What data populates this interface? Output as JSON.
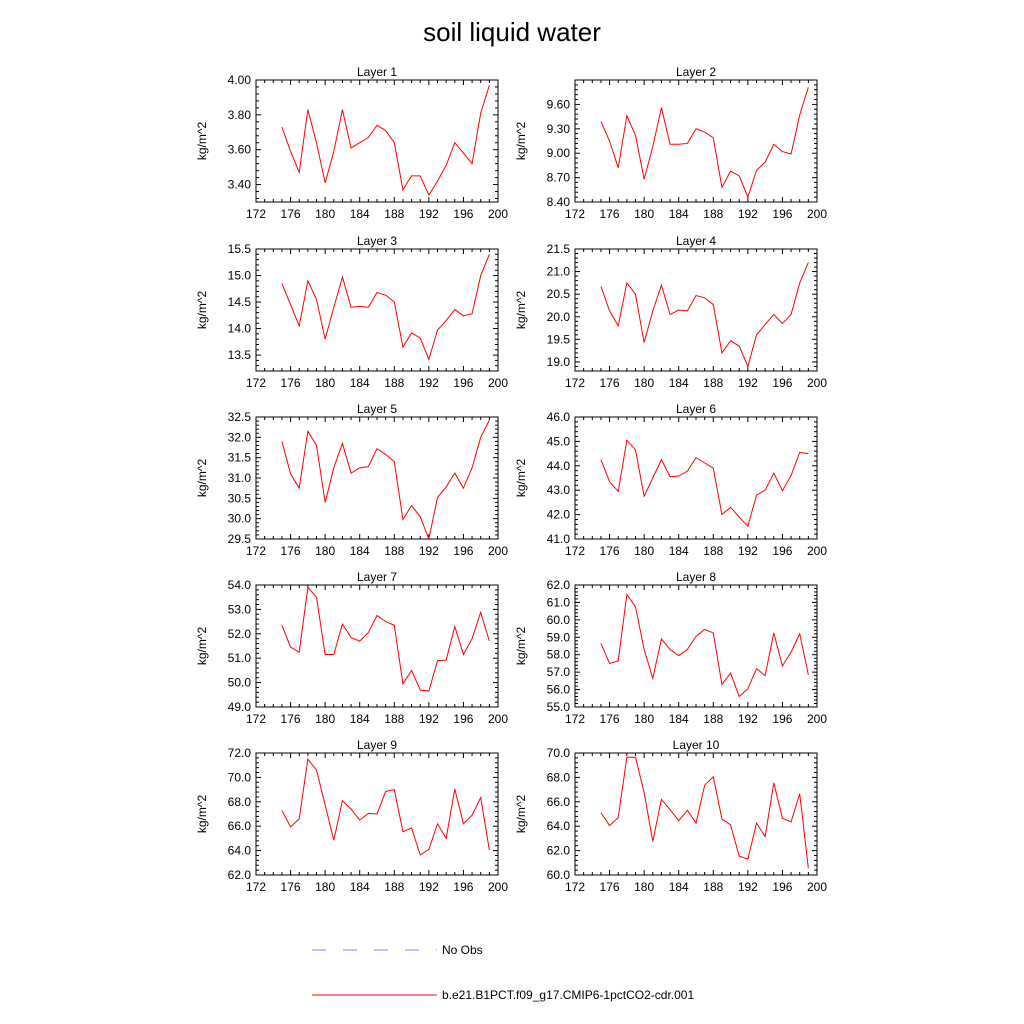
{
  "title": "soil liquid water",
  "legend": {
    "placement": "bottom",
    "entries": [
      {
        "label": "No Obs",
        "color": "#8080ff",
        "style": "dashed"
      },
      {
        "label": "b.e21.B1PCT.f09_g17.CMIP6-1pctCO2-cdr.001",
        "color": "#ff0000",
        "style": "solid"
      }
    ]
  },
  "chart_data": [
    {
      "type": "line",
      "title": "Layer 1",
      "xlabel": "",
      "ylabel": "kg/m^2",
      "xlim": [
        172,
        200
      ],
      "ylim": [
        3.3,
        4.0
      ],
      "xticks": [
        "172",
        "176",
        "180",
        "184",
        "188",
        "192",
        "196",
        "200"
      ],
      "yticks": [
        "3.40",
        "3.60",
        "3.80",
        "4.00"
      ],
      "x": [
        175,
        176,
        177,
        178,
        179,
        180,
        181,
        182,
        183,
        184,
        185,
        186,
        187,
        188,
        189,
        190,
        191,
        192,
        193,
        194,
        195,
        196,
        197,
        198,
        199
      ],
      "series": [
        {
          "name": "b.e21.B1PCT.f09_g17.CMIP6-1pctCO2-cdr.001",
          "values": [
            3.73,
            3.59,
            3.47,
            3.83,
            3.64,
            3.41,
            3.59,
            3.83,
            3.61,
            3.64,
            3.67,
            3.74,
            3.71,
            3.64,
            3.37,
            3.45,
            3.45,
            3.34,
            3.42,
            3.51,
            3.64,
            3.58,
            3.52,
            3.81,
            3.97
          ]
        }
      ]
    },
    {
      "type": "line",
      "title": "Layer 2",
      "xlabel": "",
      "ylabel": "kg/m^2",
      "xlim": [
        172,
        200
      ],
      "ylim": [
        8.4,
        9.9
      ],
      "xticks": [
        "172",
        "176",
        "180",
        "184",
        "188",
        "192",
        "196",
        "200"
      ],
      "yticks": [
        "8.40",
        "8.70",
        "9.00",
        "9.30",
        "9.60"
      ],
      "x": [
        175,
        176,
        177,
        178,
        179,
        180,
        181,
        182,
        183,
        184,
        185,
        186,
        187,
        188,
        189,
        190,
        191,
        192,
        193,
        194,
        195,
        196,
        197,
        198,
        199
      ],
      "series": [
        {
          "name": "b.e21.B1PCT.f09_g17.CMIP6-1pctCO2-cdr.001",
          "values": [
            9.39,
            9.15,
            8.82,
            9.46,
            9.22,
            8.68,
            9.08,
            9.56,
            9.11,
            9.11,
            9.12,
            9.3,
            9.26,
            9.19,
            8.58,
            8.78,
            8.72,
            8.46,
            8.79,
            8.89,
            9.11,
            9.02,
            8.99,
            9.47,
            9.81
          ]
        }
      ]
    },
    {
      "type": "line",
      "title": "Layer 3",
      "xlabel": "",
      "ylabel": "kg/m^2",
      "xlim": [
        172,
        200
      ],
      "ylim": [
        13.2,
        15.5
      ],
      "xticks": [
        "172",
        "176",
        "180",
        "184",
        "188",
        "192",
        "196",
        "200"
      ],
      "yticks": [
        "13.5",
        "14.0",
        "14.5",
        "15.0",
        "15.5"
      ],
      "x": [
        175,
        176,
        177,
        178,
        179,
        180,
        181,
        182,
        183,
        184,
        185,
        186,
        187,
        188,
        189,
        190,
        191,
        192,
        193,
        194,
        195,
        196,
        197,
        198,
        199
      ],
      "series": [
        {
          "name": "b.e21.B1PCT.f09_g17.CMIP6-1pctCO2-cdr.001",
          "values": [
            14.85,
            14.45,
            14.05,
            14.9,
            14.55,
            13.8,
            14.4,
            14.97,
            14.4,
            14.42,
            14.4,
            14.68,
            14.63,
            14.5,
            13.65,
            13.92,
            13.82,
            13.42,
            13.97,
            14.15,
            14.36,
            14.24,
            14.28,
            15.0,
            15.4
          ]
        }
      ]
    },
    {
      "type": "line",
      "title": "Layer 4",
      "xlabel": "",
      "ylabel": "kg/m^2",
      "xlim": [
        172,
        200
      ],
      "ylim": [
        18.8,
        21.5
      ],
      "xticks": [
        "172",
        "176",
        "180",
        "184",
        "188",
        "192",
        "196",
        "200"
      ],
      "yticks": [
        "19.0",
        "19.5",
        "20.0",
        "20.5",
        "21.0",
        "21.5"
      ],
      "x": [
        175,
        176,
        177,
        178,
        179,
        180,
        181,
        182,
        183,
        184,
        185,
        186,
        187,
        188,
        189,
        190,
        191,
        192,
        193,
        194,
        195,
        196,
        197,
        198,
        199
      ],
      "series": [
        {
          "name": "b.e21.B1PCT.f09_g17.CMIP6-1pctCO2-cdr.001",
          "values": [
            20.67,
            20.13,
            19.8,
            20.75,
            20.5,
            19.43,
            20.13,
            20.7,
            20.05,
            20.15,
            20.13,
            20.47,
            20.42,
            20.27,
            19.2,
            19.47,
            19.35,
            18.9,
            19.6,
            19.83,
            20.05,
            19.85,
            20.05,
            20.75,
            21.2
          ]
        }
      ]
    },
    {
      "type": "line",
      "title": "Layer 5",
      "xlabel": "",
      "ylabel": "kg/m^2",
      "xlim": [
        172,
        200
      ],
      "ylim": [
        29.5,
        32.5
      ],
      "xticks": [
        "172",
        "176",
        "180",
        "184",
        "188",
        "192",
        "196",
        "200"
      ],
      "yticks": [
        "29.5",
        "30.0",
        "30.5",
        "31.0",
        "31.5",
        "32.0",
        "32.5"
      ],
      "x": [
        175,
        176,
        177,
        178,
        179,
        180,
        181,
        182,
        183,
        184,
        185,
        186,
        187,
        188,
        189,
        190,
        191,
        192,
        193,
        194,
        195,
        196,
        197,
        198,
        199
      ],
      "series": [
        {
          "name": "b.e21.B1PCT.f09_g17.CMIP6-1pctCO2-cdr.001",
          "values": [
            31.9,
            31.1,
            30.75,
            32.15,
            31.8,
            30.4,
            31.25,
            31.85,
            31.12,
            31.25,
            31.28,
            31.72,
            31.58,
            31.4,
            29.98,
            30.32,
            30.05,
            29.5,
            30.52,
            30.78,
            31.12,
            30.75,
            31.25,
            32.0,
            32.42
          ]
        }
      ]
    },
    {
      "type": "line",
      "title": "Layer 6",
      "xlabel": "",
      "ylabel": "kg/m^2",
      "xlim": [
        172,
        200
      ],
      "ylim": [
        41.0,
        46.0
      ],
      "xticks": [
        "172",
        "176",
        "180",
        "184",
        "188",
        "192",
        "196",
        "200"
      ],
      "yticks": [
        "41.0",
        "42.0",
        "43.0",
        "44.0",
        "45.0",
        "46.0"
      ],
      "x": [
        175,
        176,
        177,
        178,
        179,
        180,
        181,
        182,
        183,
        184,
        185,
        186,
        187,
        188,
        189,
        190,
        191,
        192,
        193,
        194,
        195,
        196,
        197,
        198,
        199
      ],
      "series": [
        {
          "name": "b.e21.B1PCT.f09_g17.CMIP6-1pctCO2-cdr.001",
          "values": [
            44.25,
            43.35,
            42.95,
            45.05,
            44.65,
            42.75,
            43.5,
            44.25,
            43.55,
            43.58,
            43.78,
            44.33,
            44.12,
            43.9,
            42.0,
            42.3,
            41.9,
            41.52,
            42.8,
            43.0,
            43.7,
            42.98,
            43.6,
            44.55,
            44.5
          ]
        }
      ]
    },
    {
      "type": "line",
      "title": "Layer 7",
      "xlabel": "",
      "ylabel": "kg/m^2",
      "xlim": [
        172,
        200
      ],
      "ylim": [
        49.0,
        54.0
      ],
      "xticks": [
        "172",
        "176",
        "180",
        "184",
        "188",
        "192",
        "196",
        "200"
      ],
      "yticks": [
        "49.0",
        "50.0",
        "51.0",
        "52.0",
        "53.0",
        "54.0"
      ],
      "x": [
        175,
        176,
        177,
        178,
        179,
        180,
        181,
        182,
        183,
        184,
        185,
        186,
        187,
        188,
        189,
        190,
        191,
        192,
        193,
        194,
        195,
        196,
        197,
        198,
        199
      ],
      "series": [
        {
          "name": "b.e21.B1PCT.f09_g17.CMIP6-1pctCO2-cdr.001",
          "values": [
            52.35,
            51.45,
            51.25,
            53.9,
            53.5,
            51.15,
            51.15,
            52.4,
            51.85,
            51.7,
            52.05,
            52.75,
            52.5,
            52.35,
            49.95,
            50.5,
            49.7,
            49.65,
            50.9,
            50.92,
            52.3,
            51.15,
            51.8,
            52.88,
            51.7
          ]
        }
      ]
    },
    {
      "type": "line",
      "title": "Layer 8",
      "xlabel": "",
      "ylabel": "kg/m^2",
      "xlim": [
        172,
        200
      ],
      "ylim": [
        55.0,
        62.0
      ],
      "xticks": [
        "172",
        "176",
        "180",
        "184",
        "188",
        "192",
        "196",
        "200"
      ],
      "yticks": [
        "55.0",
        "56.0",
        "57.0",
        "58.0",
        "59.0",
        "60.0",
        "61.0",
        "62.0"
      ],
      "x": [
        175,
        176,
        177,
        178,
        179,
        180,
        181,
        182,
        183,
        184,
        185,
        186,
        187,
        188,
        189,
        190,
        191,
        192,
        193,
        194,
        195,
        196,
        197,
        198,
        199
      ],
      "series": [
        {
          "name": "b.e21.B1PCT.f09_g17.CMIP6-1pctCO2-cdr.001",
          "values": [
            58.65,
            57.5,
            57.65,
            61.45,
            60.75,
            58.3,
            56.65,
            58.9,
            58.3,
            57.95,
            58.3,
            59.05,
            59.45,
            59.25,
            56.3,
            56.95,
            55.6,
            56.05,
            57.2,
            56.8,
            59.25,
            57.35,
            58.15,
            59.2,
            56.85
          ]
        }
      ]
    },
    {
      "type": "line",
      "title": "Layer 9",
      "xlabel": "",
      "ylabel": "kg/m^2",
      "xlim": [
        172,
        200
      ],
      "ylim": [
        62.0,
        72.0
      ],
      "xticks": [
        "172",
        "176",
        "180",
        "184",
        "188",
        "192",
        "196",
        "200"
      ],
      "yticks": [
        "62.0",
        "64.0",
        "66.0",
        "68.0",
        "70.0",
        "72.0"
      ],
      "x": [
        175,
        176,
        177,
        178,
        179,
        180,
        181,
        182,
        183,
        184,
        185,
        186,
        187,
        188,
        189,
        190,
        191,
        192,
        193,
        194,
        195,
        196,
        197,
        198,
        199
      ],
      "series": [
        {
          "name": "b.e21.B1PCT.f09_g17.CMIP6-1pctCO2-cdr.001",
          "values": [
            67.3,
            65.95,
            66.6,
            71.5,
            70.6,
            67.75,
            64.85,
            68.1,
            67.4,
            66.5,
            67.05,
            67.0,
            68.85,
            69.0,
            65.55,
            65.85,
            63.65,
            64.1,
            66.2,
            65.0,
            69.05,
            66.2,
            66.9,
            68.35,
            64.05
          ]
        }
      ]
    },
    {
      "type": "line",
      "title": "Layer 10",
      "xlabel": "",
      "ylabel": "kg/m^2",
      "xlim": [
        172,
        200
      ],
      "ylim": [
        60.0,
        70.0
      ],
      "xticks": [
        "172",
        "176",
        "180",
        "184",
        "188",
        "192",
        "196",
        "200"
      ],
      "yticks": [
        "60.0",
        "62.0",
        "64.0",
        "66.0",
        "68.0",
        "70.0"
      ],
      "x": [
        175,
        176,
        177,
        178,
        179,
        180,
        181,
        182,
        183,
        184,
        185,
        186,
        187,
        188,
        189,
        190,
        191,
        192,
        193,
        194,
        195,
        196,
        197,
        198,
        199
      ],
      "series": [
        {
          "name": "b.e21.B1PCT.f09_g17.CMIP6-1pctCO2-cdr.001",
          "values": [
            65.1,
            64.05,
            64.7,
            69.65,
            69.65,
            66.75,
            62.75,
            66.2,
            65.35,
            64.45,
            65.3,
            64.25,
            67.35,
            68.05,
            64.6,
            64.1,
            61.55,
            61.3,
            64.25,
            63.15,
            67.55,
            64.65,
            64.35,
            66.65,
            60.55
          ]
        }
      ]
    }
  ]
}
